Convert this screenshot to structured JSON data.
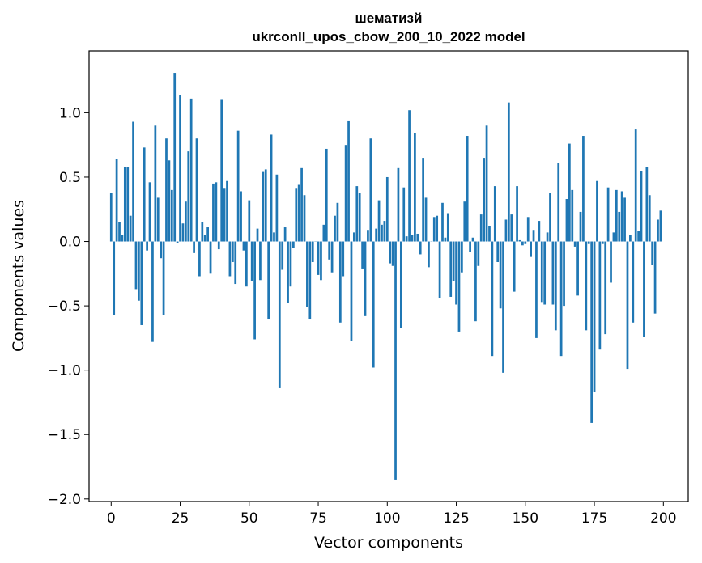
{
  "chart_data": {
    "type": "bar",
    "title_line1": "шематизй",
    "title_line2": "ukrconll_upos_cbow_200_10_2022 model",
    "xlabel": "Vector components",
    "ylabel": "Components values",
    "xlim": [
      -8,
      209
    ],
    "ylim": [
      -2.02,
      1.48
    ],
    "xticks": [
      0,
      25,
      50,
      75,
      100,
      125,
      150,
      175,
      200
    ],
    "yticks": [
      {
        "value": 1.0,
        "label": "1.0"
      },
      {
        "value": 0.5,
        "label": "0.5"
      },
      {
        "value": 0.0,
        "label": "0.0"
      },
      {
        "value": -0.5,
        "label": "−0.5"
      },
      {
        "value": -1.0,
        "label": "−1.0"
      },
      {
        "value": -1.5,
        "label": "−1.5"
      },
      {
        "value": -2.0,
        "label": "−2.0"
      }
    ],
    "bar_color": "#1f77b4",
    "values": [
      0.38,
      -0.57,
      0.64,
      0.15,
      0.05,
      0.58,
      0.58,
      0.2,
      0.93,
      -0.37,
      -0.46,
      -0.65,
      0.73,
      -0.07,
      0.46,
      -0.78,
      0.9,
      0.34,
      -0.13,
      -0.57,
      0.8,
      0.63,
      0.4,
      1.31,
      -0.01,
      1.14,
      0.14,
      0.31,
      0.7,
      1.11,
      -0.09,
      0.8,
      -0.27,
      0.15,
      0.05,
      0.11,
      -0.25,
      0.45,
      0.46,
      -0.06,
      1.1,
      0.41,
      0.47,
      -0.27,
      -0.16,
      -0.33,
      0.86,
      0.39,
      -0.07,
      -0.35,
      0.32,
      -0.31,
      -0.76,
      0.1,
      -0.3,
      0.54,
      0.56,
      -0.6,
      0.83,
      0.07,
      0.52,
      -1.14,
      -0.22,
      0.11,
      -0.48,
      -0.35,
      -0.05,
      0.41,
      0.44,
      0.57,
      0.36,
      -0.51,
      -0.6,
      -0.16,
      0.0,
      -0.26,
      -0.3,
      0.13,
      0.72,
      -0.14,
      -0.24,
      0.2,
      0.3,
      -0.63,
      -0.27,
      0.75,
      0.94,
      -0.77,
      0.07,
      0.43,
      0.38,
      -0.21,
      -0.58,
      0.09,
      0.8,
      -0.98,
      0.1,
      0.32,
      0.13,
      0.16,
      0.5,
      -0.17,
      -0.19,
      -1.85,
      0.57,
      -0.67,
      0.42,
      0.04,
      1.02,
      0.05,
      0.84,
      0.06,
      -0.1,
      0.65,
      0.34,
      -0.2,
      0.0,
      0.19,
      0.2,
      -0.44,
      0.3,
      0.03,
      0.22,
      -0.43,
      -0.31,
      -0.49,
      -0.7,
      -0.24,
      0.31,
      0.82,
      -0.08,
      0.03,
      -0.62,
      -0.19,
      0.21,
      0.65,
      0.9,
      0.12,
      -0.89,
      0.43,
      -0.16,
      -0.52,
      -1.02,
      0.17,
      1.08,
      0.21,
      -0.39,
      0.43,
      0.01,
      -0.03,
      -0.02,
      0.19,
      -0.12,
      0.09,
      -0.75,
      0.16,
      -0.47,
      -0.49,
      0.07,
      0.38,
      -0.49,
      -0.69,
      0.61,
      -0.89,
      -0.5,
      0.33,
      0.76,
      0.4,
      -0.04,
      -0.42,
      0.23,
      0.82,
      -0.69,
      -0.02,
      -1.41,
      -1.17,
      0.47,
      -0.84,
      -0.02,
      -0.72,
      0.42,
      -0.32,
      0.07,
      0.4,
      0.23,
      0.39,
      0.34,
      -0.99,
      0.05,
      -0.63,
      0.87,
      0.08,
      0.55,
      -0.74,
      0.58,
      0.36,
      -0.18,
      -0.56,
      0.17,
      0.24
    ]
  }
}
